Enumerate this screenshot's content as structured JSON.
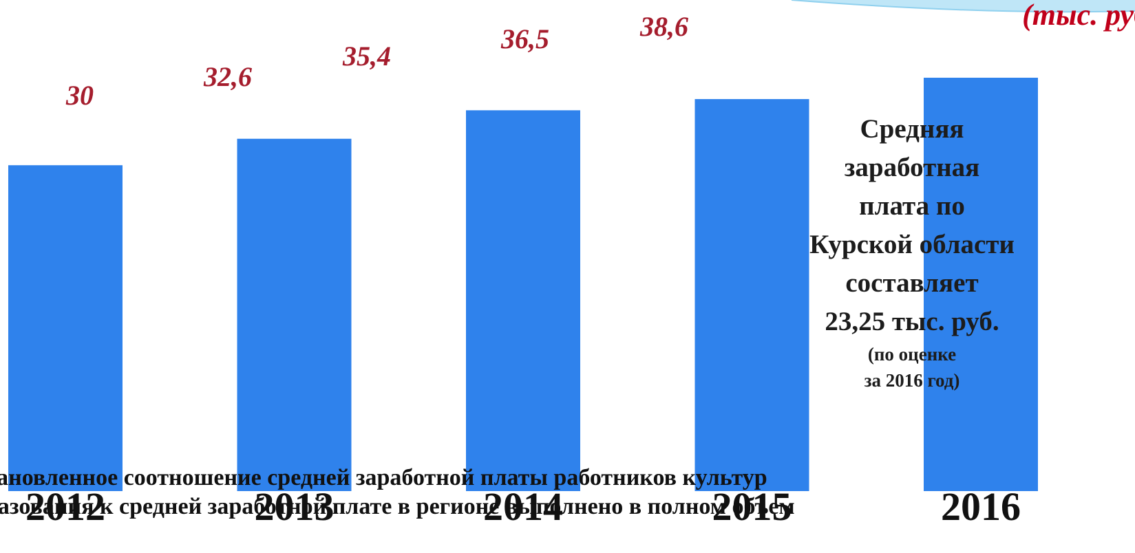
{
  "chart_data": {
    "type": "bar",
    "categories": [
      "2012",
      "2013",
      "2014",
      "2015",
      "2016"
    ],
    "values": [
      30,
      32.6,
      35.4,
      36.5,
      38.6
    ],
    "value_labels": [
      "30",
      "32,6",
      "35,4",
      "36,5",
      "38,6"
    ],
    "units_label": "(тыс. руб",
    "title": "",
    "xlabel": "",
    "ylabel": "",
    "ylim": [
      0,
      40
    ],
    "grid": false,
    "legend": "none"
  },
  "colors": {
    "bar": "#2f82ec",
    "value_label": "#a51d2d",
    "units_label": "#c0001a",
    "tick_label": "#111111",
    "swoosh": "#bfe6f7"
  },
  "note": {
    "lines": [
      "Средняя",
      "заработная",
      "плата по",
      "Курской области",
      "составляет",
      "23,25 тыс. руб."
    ],
    "sub_lines": [
      "(по оценке",
      "за 2016 год)"
    ]
  },
  "bottom_text": {
    "line1": "тановленное соотношение средней заработной платы работников культур",
    "line2": "разования к средней заработной плате в регионе выполнено в полном объем"
  }
}
